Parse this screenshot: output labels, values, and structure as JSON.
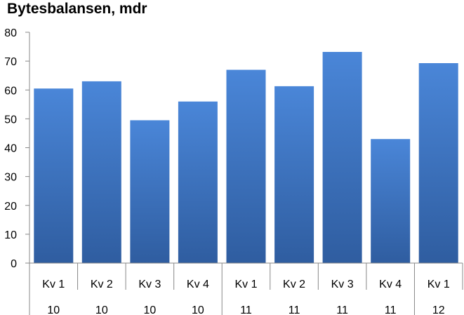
{
  "chart_data": {
    "type": "bar",
    "title": "Bytesbalansen, mdr",
    "categories": [
      {
        "quarter": "Kv 1",
        "year": "10"
      },
      {
        "quarter": "Kv 2",
        "year": "10"
      },
      {
        "quarter": "Kv 3",
        "year": "10"
      },
      {
        "quarter": "Kv 4",
        "year": "10"
      },
      {
        "quarter": "Kv 1",
        "year": "11"
      },
      {
        "quarter": "Kv 2",
        "year": "11"
      },
      {
        "quarter": "Kv 3",
        "year": "11"
      },
      {
        "quarter": "Kv 4",
        "year": "11"
      },
      {
        "quarter": "Kv 1",
        "year": "12"
      }
    ],
    "values": [
      60.5,
      63,
      49.5,
      56,
      67,
      61.3,
      73.2,
      43,
      69.3
    ],
    "ylim": [
      0,
      80
    ],
    "yticks": [
      "0",
      "10",
      "20",
      "30",
      "40",
      "50",
      "60",
      "70",
      "80"
    ],
    "grid": false,
    "colors": {
      "bar_light": "#4a86d8",
      "bar_dark": "#2f5da0",
      "axis": "#888888"
    }
  }
}
